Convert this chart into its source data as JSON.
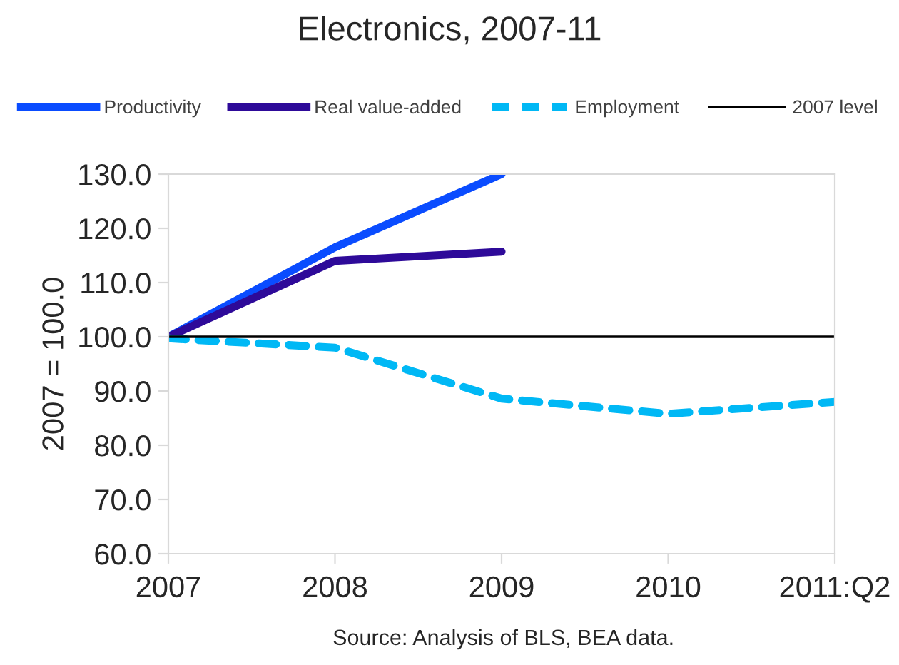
{
  "chart_data": {
    "type": "line",
    "title": "Electronics, 2007-11",
    "ylabel": "2007 = 100.0",
    "categories": [
      "2007",
      "2008",
      "2009",
      "2010",
      "2011:Q2"
    ],
    "series": [
      {
        "name": "Productivity",
        "color": "#0a4cff",
        "values": [
          100.0,
          116.5,
          130.0,
          null,
          null
        ]
      },
      {
        "name": "Real value-added",
        "color": "#2e0a99",
        "values": [
          100.0,
          114.0,
          115.7,
          null,
          null
        ]
      },
      {
        "name": "Employment",
        "color": "#00b8f5",
        "values": [
          99.7,
          98.0,
          88.6,
          85.8,
          88.0
        ],
        "line_style": "dashed"
      }
    ],
    "ref_lines": [
      {
        "axis": "y",
        "value": 100.0,
        "label": "2007 level",
        "color": "#000000"
      }
    ],
    "ylim": [
      60.0,
      130.0
    ],
    "yticks": [
      {
        "value": 60,
        "label": "60.0"
      },
      {
        "value": 70,
        "label": "70.0"
      },
      {
        "value": 80,
        "label": "80.0"
      },
      {
        "value": 90,
        "label": "90.0"
      },
      {
        "value": 100,
        "label": "100.0"
      },
      {
        "value": 110,
        "label": "110.0"
      },
      {
        "value": 120,
        "label": "120.0"
      },
      {
        "value": 130,
        "label": "130.0"
      }
    ],
    "grid": false,
    "legend": "top",
    "annotations": [
      "Source: Analysis of BLS, BEA data."
    ]
  }
}
